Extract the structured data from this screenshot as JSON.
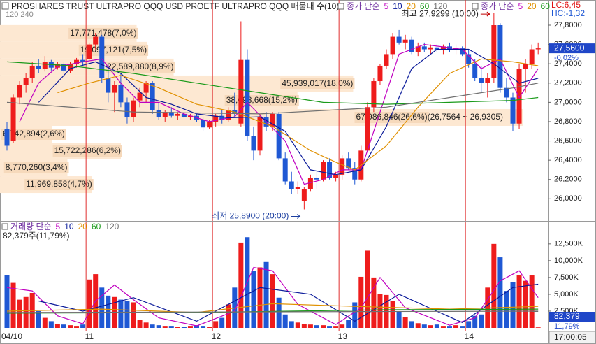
{
  "chart_data": [
    {
      "type": "candlestick",
      "title": "PROSHARES TRUST ULTRAPRO QQQ USD  PROETF ULTRAPRO QQQ 매물대 수(10)",
      "subtitle": "120 240",
      "lc_label": "LC:6,45",
      "hc_label": "HC:-1,32",
      "up_color": "#ee1c1c",
      "down_color": "#1f58d4",
      "ylim": [
        25.785,
        28.032
      ],
      "yticks": [
        {
          "value": 26.0,
          "label": "26,0000"
        },
        {
          "value": 26.2,
          "label": "26,2000"
        },
        {
          "value": 26.4,
          "label": "26,4000"
        },
        {
          "value": 26.6,
          "label": "26,6000"
        },
        {
          "value": 26.8,
          "label": "26,8000"
        },
        {
          "value": 27.0,
          "label": "27,0000"
        },
        {
          "value": 27.2,
          "label": "27,2000"
        },
        {
          "value": 27.4,
          "label": "27,4000"
        },
        {
          "value": 27.6,
          "label": "27,6000"
        },
        {
          "value": 27.8,
          "label": "27,8000"
        }
      ],
      "open": [
        26.72,
        26.6,
        27.05,
        27.18,
        27.25,
        27.38,
        27.35,
        27.42,
        27.36,
        27.4,
        27.33,
        27.4,
        27.44,
        27.45,
        27.6,
        27.68,
        27.25,
        27.1,
        27.18,
        27.0,
        26.85,
        27.02,
        27.1,
        27.2,
        26.92,
        26.85,
        26.9,
        26.86,
        26.88,
        26.85,
        26.86,
        26.82,
        26.74,
        26.8,
        26.86,
        26.82,
        26.92,
        26.78,
        27.44,
        26.65,
        26.5,
        26.85,
        26.75,
        26.88,
        26.42,
        26.18,
        26.1,
        25.98,
        26.1,
        26.22,
        26.2,
        26.38,
        26.22,
        26.25,
        26.42,
        26.32,
        26.2,
        26.5,
        26.95,
        27.22,
        27.38,
        27.5,
        27.68,
        27.62,
        27.65,
        27.52,
        27.58,
        27.55,
        27.57,
        27.54,
        27.58,
        27.55,
        27.56,
        27.5,
        27.4,
        27.25,
        27.2,
        27.25,
        27.8,
        27.15,
        27.05,
        26.78,
        27.35,
        27.4,
        27.55
      ],
      "high": [
        26.8,
        27.08,
        27.22,
        27.3,
        27.42,
        27.45,
        27.48,
        27.44,
        27.42,
        27.42,
        27.42,
        27.46,
        27.5,
        27.62,
        27.72,
        27.7,
        27.4,
        27.22,
        27.3,
        27.05,
        27.05,
        27.15,
        27.22,
        27.22,
        27.0,
        26.92,
        26.95,
        26.9,
        26.9,
        26.88,
        26.88,
        26.85,
        26.82,
        26.88,
        26.92,
        26.95,
        27.1,
        27.84,
        27.55,
        26.75,
        26.88,
        26.9,
        26.9,
        26.9,
        26.48,
        26.28,
        26.18,
        26.12,
        26.25,
        26.28,
        26.4,
        26.42,
        26.28,
        26.45,
        26.48,
        26.38,
        26.55,
        27.0,
        27.25,
        27.4,
        27.55,
        27.72,
        27.75,
        27.7,
        27.68,
        27.62,
        27.62,
        27.6,
        27.6,
        27.6,
        27.62,
        27.6,
        27.58,
        27.55,
        27.45,
        27.38,
        27.3,
        27.9299,
        27.82,
        27.25,
        27.1,
        27.4,
        27.45,
        27.6,
        27.62
      ],
      "low": [
        26.5,
        26.58,
        26.98,
        27.1,
        27.2,
        27.3,
        27.32,
        27.33,
        27.34,
        27.3,
        27.3,
        27.36,
        27.38,
        27.44,
        27.55,
        27.2,
        27.0,
        26.9,
        26.95,
        26.78,
        26.8,
        26.95,
        27.0,
        26.88,
        26.82,
        26.8,
        26.84,
        26.82,
        26.84,
        26.82,
        26.8,
        26.7,
        26.72,
        26.75,
        26.78,
        26.8,
        26.85,
        26.75,
        26.6,
        26.4,
        26.45,
        26.7,
        26.7,
        26.4,
        26.15,
        26.05,
        26.05,
        25.89,
        26.08,
        26.1,
        26.18,
        26.2,
        26.18,
        26.2,
        26.3,
        26.15,
        26.18,
        26.48,
        26.9,
        27.18,
        27.35,
        27.45,
        27.6,
        27.55,
        27.5,
        27.48,
        27.52,
        27.5,
        27.52,
        27.5,
        27.52,
        27.5,
        27.48,
        27.36,
        27.22,
        27.1,
        27.05,
        27.2,
        27.1,
        27.0,
        26.7,
        26.72,
        27.1,
        27.35,
        27.5
      ],
      "close": [
        26.55,
        27.05,
        27.18,
        27.25,
        27.38,
        27.35,
        27.42,
        27.36,
        27.4,
        27.33,
        27.4,
        27.44,
        27.42,
        27.6,
        27.68,
        27.25,
        27.1,
        27.18,
        27.0,
        26.85,
        27.02,
        27.1,
        27.2,
        26.92,
        26.85,
        26.9,
        26.86,
        26.88,
        26.85,
        26.86,
        26.82,
        26.74,
        26.8,
        26.86,
        26.82,
        26.92,
        26.88,
        27.44,
        26.65,
        26.5,
        26.85,
        26.75,
        26.88,
        26.42,
        26.18,
        26.1,
        26.12,
        26.1,
        26.22,
        26.2,
        26.38,
        26.22,
        26.25,
        26.42,
        26.32,
        26.2,
        26.5,
        26.95,
        27.22,
        27.38,
        27.5,
        27.68,
        27.62,
        27.65,
        27.52,
        27.58,
        27.55,
        27.57,
        27.54,
        27.58,
        27.55,
        27.56,
        27.5,
        27.4,
        27.25,
        27.2,
        27.25,
        27.8,
        27.15,
        27.05,
        26.78,
        27.35,
        27.4,
        27.55,
        27.56
      ],
      "legend_label": "종가 단순",
      "series": [
        {
          "name": "5",
          "color": "#c000c0",
          "x": [
            2,
            5,
            8,
            12,
            15,
            18,
            21,
            24,
            28,
            32,
            36,
            38,
            41,
            44,
            47,
            50,
            53,
            56,
            59,
            62,
            66,
            72,
            75,
            78,
            81,
            84
          ],
          "values": [
            26.8,
            27.2,
            27.37,
            27.42,
            27.45,
            27.2,
            27.0,
            27.0,
            26.88,
            26.8,
            26.85,
            27.0,
            26.8,
            26.6,
            26.15,
            26.2,
            26.3,
            26.3,
            26.9,
            27.5,
            27.6,
            27.55,
            27.35,
            27.45,
            27.05,
            27.35
          ]
        },
        {
          "name": "10",
          "color": "#0a1a9a",
          "x": [
            5,
            10,
            14,
            18,
            22,
            26,
            30,
            35,
            40,
            44,
            48,
            52,
            56,
            60,
            64,
            68,
            73,
            77,
            81,
            84
          ],
          "values": [
            27.0,
            27.35,
            27.42,
            27.3,
            27.05,
            26.98,
            26.88,
            26.84,
            26.85,
            26.7,
            26.3,
            26.25,
            26.3,
            26.75,
            27.35,
            27.55,
            27.55,
            27.4,
            27.2,
            27.25
          ]
        },
        {
          "name": "20",
          "color": "#e09000",
          "x": [
            8,
            13,
            18,
            24,
            30,
            36,
            42,
            48,
            52,
            55,
            60,
            65,
            70,
            75,
            80,
            84
          ],
          "values": [
            27.1,
            27.2,
            27.28,
            27.15,
            26.98,
            26.9,
            26.75,
            26.5,
            26.38,
            26.3,
            26.55,
            26.95,
            27.3,
            27.45,
            27.42,
            27.38
          ]
        },
        {
          "name": "60",
          "color": "#1a9a1a",
          "x": [
            0,
            10,
            20,
            30,
            40,
            50,
            60,
            70,
            80,
            84
          ],
          "values": [
            27.42,
            27.38,
            27.3,
            27.2,
            27.1,
            27.0,
            26.98,
            27.0,
            27.02,
            27.05
          ]
        },
        {
          "name": "120",
          "color": "#707070",
          "x": [
            0,
            20,
            40,
            60,
            70,
            80,
            84
          ],
          "values": [
            27.0,
            26.9,
            26.88,
            26.95,
            27.05,
            27.15,
            27.2
          ]
        }
      ],
      "legend2": {
        "label": "종가 단순",
        "names": [
          "5",
          "20",
          "60"
        ]
      },
      "volume_profile": {
        "color": "#fde8d2",
        "label_color": "#f6d9bb",
        "bins": [
          26.06,
          26.2341,
          26.4082,
          26.5823,
          26.7564,
          26.9305,
          27.1046,
          27.2787,
          27.4528,
          27.6269,
          27.801
        ],
        "values": [
          11969858,
          8770260,
          15722286,
          6742894,
          67986846,
          38698668,
          45939017,
          22589880,
          19097121,
          17771478
        ],
        "value_labels": [
          "11,969,858(4,7%)",
          "8,770,260(3,4%)",
          "15,722,286(6,2%)",
          "6,742,894(2,6%)",
          "67,986,846(26,6%)",
          "38,698,668(15,2%)",
          "45,939,017(18,0%)",
          "22,589,880(8,9%)",
          "19,097,121(7,5%)",
          "17,771,478(7,0%)"
        ],
        "max_range_label": "(26,7564 ~ 26,9305)"
      },
      "high_label": "최고 27,9299 (10:00)",
      "low_label": "최저 25,8900 (20:00)",
      "last": {
        "value": 27.56,
        "label": "27,5600",
        "change_label": "-0,02%"
      }
    },
    {
      "type": "bar",
      "categories": [
        "04/10",
        null,
        null,
        null,
        null,
        null,
        null,
        null,
        null,
        null,
        null,
        null,
        null,
        "11",
        null,
        null,
        null,
        null,
        null,
        null,
        null,
        null,
        null,
        null,
        null,
        null,
        null,
        null,
        null,
        null,
        null,
        null,
        null,
        "12",
        null,
        null,
        null,
        null,
        null,
        null,
        null,
        null,
        null,
        null,
        null,
        null,
        null,
        null,
        null,
        null,
        null,
        null,
        null,
        "13",
        null,
        null,
        null,
        null,
        null,
        null,
        null,
        null,
        null,
        null,
        null,
        null,
        null,
        null,
        null,
        null,
        null,
        null,
        null,
        "14",
        null,
        null,
        null,
        null,
        null,
        null,
        null,
        null,
        null,
        null,
        null
      ],
      "values": [
        7900000,
        6700000,
        4200000,
        4600000,
        5200000,
        2500000,
        1500000,
        1000000,
        600000,
        500000,
        400000,
        300000,
        500000,
        7200000,
        8000000,
        6000000,
        4800000,
        4600000,
        4200000,
        4000000,
        3800000,
        1200000,
        800000,
        500000,
        400000,
        300000,
        300000,
        200000,
        200000,
        300000,
        400000,
        300000,
        200000,
        1000000,
        1500000,
        3500000,
        6000000,
        12700000,
        13500000,
        8500000,
        9000000,
        9800000,
        8000000,
        4500000,
        2000000,
        1000000,
        800000,
        600000,
        500000,
        400000,
        400000,
        300000,
        300000,
        500000,
        1200000,
        3800000,
        7600000,
        11500000,
        7500000,
        5000000,
        4900000,
        4000000,
        2400000,
        1600000,
        1000000,
        700000,
        500000,
        400000,
        500000,
        300000,
        300000,
        400000,
        300000,
        1000000,
        1800000,
        2000000,
        6000000,
        12500000,
        10500000,
        5500000,
        6800000,
        7800000,
        7000000,
        7800000,
        82379
      ],
      "ylim": [
        0,
        15500000
      ],
      "yticks": [
        {
          "value": 2500000,
          "label": "2,500K"
        },
        {
          "value": 5000000,
          "label": "5,000K"
        },
        {
          "value": 7500000,
          "label": "7,500K"
        },
        {
          "value": 10000000,
          "label": "10,000K"
        },
        {
          "value": 12500000,
          "label": "12,500K"
        }
      ],
      "legend_label": "거래량 단순",
      "series": [
        {
          "name": "5",
          "color": "#c000c0",
          "x": [
            0,
            4,
            8,
            12,
            14,
            17,
            20,
            24,
            30,
            36,
            39,
            42,
            46,
            52,
            56,
            59,
            63,
            70,
            74,
            78,
            81,
            84
          ],
          "values": [
            6000000,
            5500000,
            1800000,
            600000,
            4000000,
            6400000,
            4200000,
            1500000,
            300000,
            2500000,
            9000000,
            8500000,
            3500000,
            500000,
            3000000,
            7500000,
            3000000,
            400000,
            1500000,
            7000000,
            8500000,
            4500000
          ]
        },
        {
          "name": "10",
          "color": "#0a1a9a",
          "x": [
            5,
            12,
            20,
            30,
            40,
            48,
            55,
            62,
            72,
            80,
            84
          ],
          "values": [
            4000000,
            2500000,
            4500000,
            1000000,
            6000000,
            5000000,
            1000000,
            5000000,
            800000,
            6000000,
            6500000
          ]
        },
        {
          "name": "20",
          "color": "#e09000",
          "x": [
            0,
            15,
            30,
            42,
            55,
            70,
            84
          ],
          "values": [
            2500000,
            2800000,
            2300000,
            3600000,
            3200000,
            2800000,
            3200000
          ]
        },
        {
          "name": "60",
          "color": "#1a9a1a",
          "x": [
            0,
            30,
            60,
            84
          ],
          "values": [
            2200000,
            2300000,
            2700000,
            2800000
          ]
        },
        {
          "name": "120",
          "color": "#707070",
          "x": [
            0,
            84
          ],
          "values": [
            2300000,
            2500000
          ]
        }
      ],
      "info_label": "82,379주(11,79%)",
      "last": {
        "value": 82379,
        "label": "82,379",
        "change_label": "11,79%"
      },
      "time_label": "17:00:05"
    }
  ]
}
